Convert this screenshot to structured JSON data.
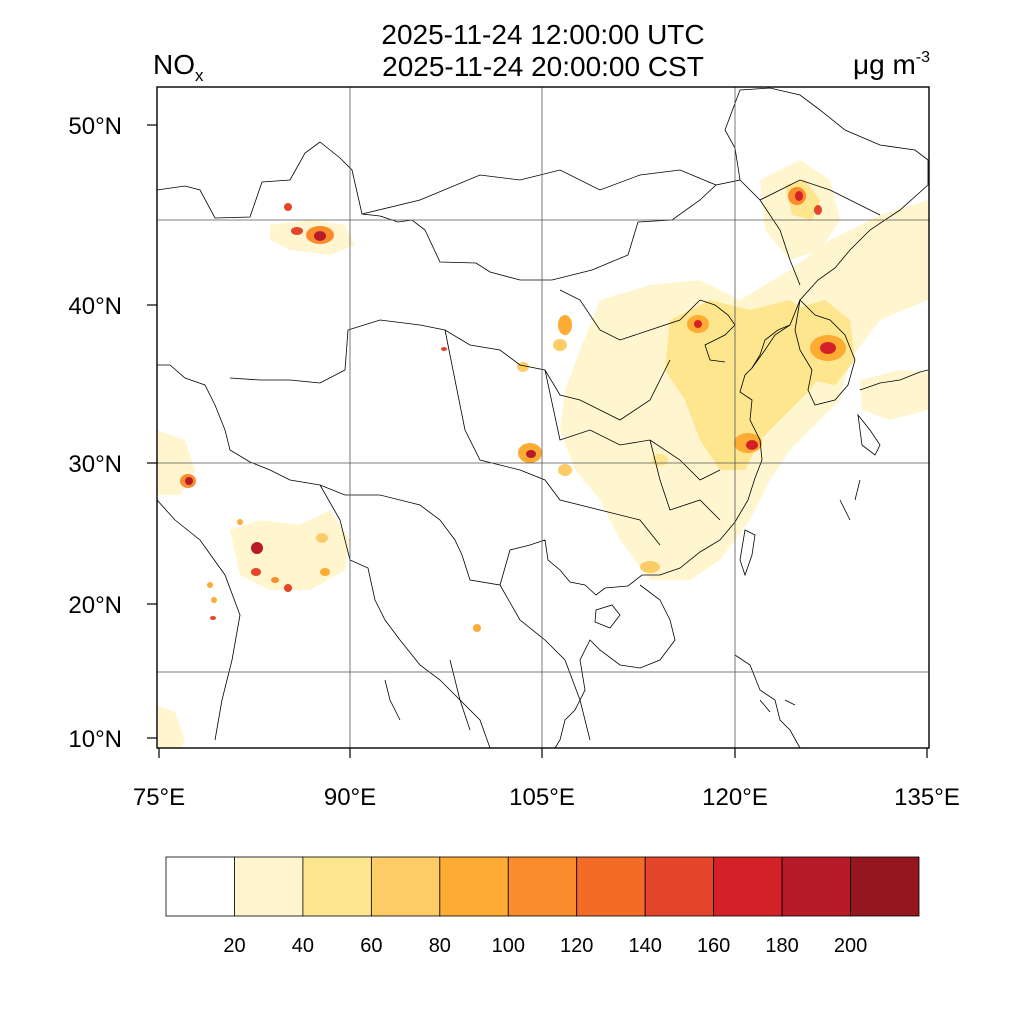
{
  "header": {
    "title_utc": "2025-11-24 12:00:00 UTC",
    "title_cst": "2025-11-24 20:00:00 CST",
    "species": "NO",
    "species_subscript": "x",
    "units_prefix": "μg m",
    "units_exponent": "-3"
  },
  "map": {
    "lon_ticks": [
      "75°E",
      "90°E",
      "105°E",
      "120°E",
      "135°E"
    ],
    "lat_ticks": [
      "50°N",
      "40°N",
      "30°N",
      "20°N",
      "10°N"
    ],
    "gridlines": true
  },
  "colorbar": {
    "colors": [
      "#ffffff",
      "#fff5cf",
      "#fde68e",
      "#fdcc66",
      "#fdab33",
      "#fb8c2c",
      "#f46a27",
      "#e5452a",
      "#d42128",
      "#b71b27",
      "#95161f"
    ],
    "labels": [
      "20",
      "40",
      "60",
      "80",
      "100",
      "120",
      "140",
      "160",
      "180",
      "200"
    ]
  }
}
